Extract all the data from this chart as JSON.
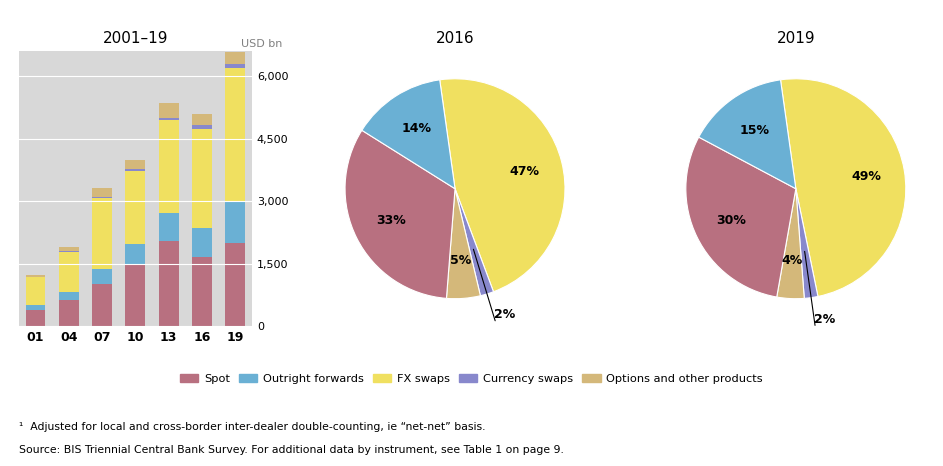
{
  "bar_years": [
    "01",
    "04",
    "07",
    "10",
    "13",
    "16",
    "19"
  ],
  "bar_title": "2001–19",
  "bar_ylabel": "USD bn",
  "bar_yticks": [
    0,
    1500,
    3000,
    4500,
    6000
  ],
  "bar_data": {
    "spot": [
      386,
      621,
      1005,
      1490,
      2047,
      1654,
      1987
    ],
    "outright": [
      130,
      208,
      362,
      475,
      680,
      700,
      999
    ],
    "fx_swaps": [
      656,
      944,
      1714,
      1765,
      2228,
      2378,
      3202
    ],
    "cur_swaps": [
      7,
      21,
      31,
      43,
      54,
      96,
      108
    ],
    "options": [
      60,
      117,
      212,
      207,
      337,
      254,
      294
    ]
  },
  "pie2016_title": "2016",
  "pie2016_values": [
    47,
    2,
    5,
    33,
    14
  ],
  "pie2019_title": "2019",
  "pie2019_values": [
    49,
    2,
    4,
    30,
    15
  ],
  "pie_startangle": 98,
  "colors": {
    "spot": "#b87080",
    "outright": "#6ab0d4",
    "fx_swaps": "#f0e060",
    "cur_swaps": "#8888cc",
    "options": "#d4b87a"
  },
  "colors_order": [
    "fx_swaps",
    "cur_swaps",
    "options",
    "spot",
    "outright"
  ],
  "legend_labels": [
    "Spot",
    "Outright forwards",
    "FX swaps",
    "Currency swaps",
    "Options and other products"
  ],
  "bg_color": "#d8d8d8",
  "footnote1": "¹  Adjusted for local and cross-border inter-dealer double-counting, ie “net-net” basis.",
  "footnote2": "Source: BIS Triennial Central Bank Survey. For additional data by instrument, see Table 1 on page 9."
}
